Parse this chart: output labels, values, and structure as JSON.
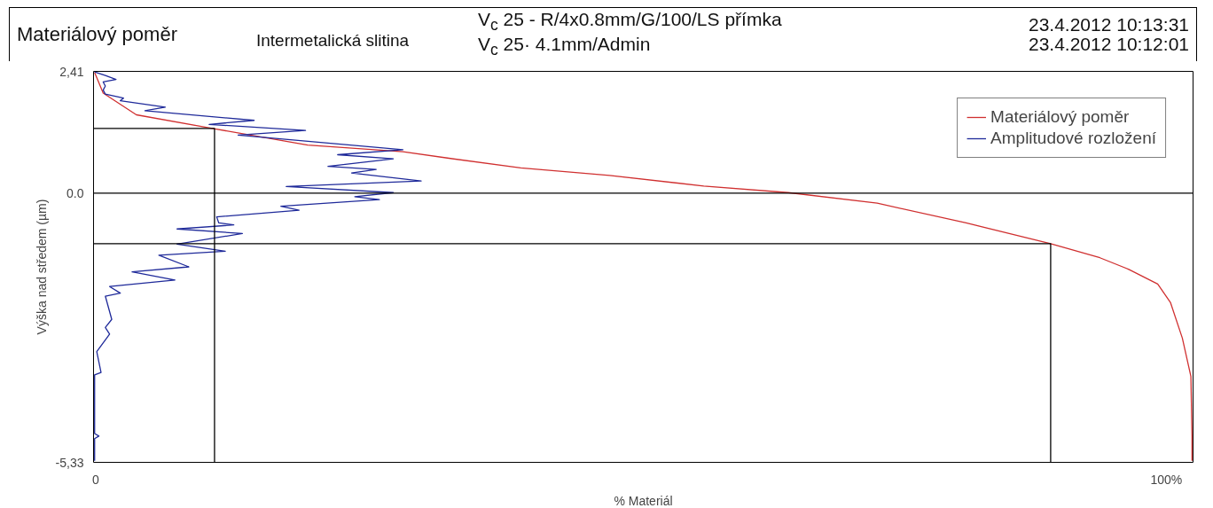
{
  "chart_data": {
    "type": "line",
    "title": "Materiálový poměr",
    "subtitle": "Intermetalická slitina",
    "annotations": [
      "V$_{c}$ 25 - R/4x0.8mm/G/100/LS přímka",
      "V$_{c}$ 25· 4.1mm/Admin",
      "23.4.2012 10:13:31",
      "23.4.2012 10:12:01"
    ],
    "xlabel": "% Materiál",
    "ylabel": "Výška nad středem (µm)",
    "xlim": [
      -0.2,
      102.5
    ],
    "xticks": [
      {
        "value": 0,
        "label": "0"
      },
      {
        "value": 100,
        "label": "100%"
      }
    ],
    "ylim": [
      -5.33,
      2.41
    ],
    "yticks": [
      {
        "value": -5.33,
        "label": "-5,33"
      },
      {
        "value": 0,
        "label": "0.0"
      },
      {
        "value": 2.41,
        "label": "2,41"
      }
    ],
    "grid": false,
    "legend": "top right",
    "ref_lines": [
      {
        "axis": "y",
        "value": 0,
        "color": "#000000"
      }
    ],
    "series": [
      {
        "name": "Materiálový poměr",
        "color": "#d03030",
        "x": [
          -0.1,
          0.7,
          3.8,
          10.9,
          19.8,
          28.7,
          33.0,
          39.7,
          48.0,
          56.8,
          64.7,
          73.0,
          81.3,
          89.2,
          93.8,
          96.5,
          99.2,
          100.4,
          101.5,
          102.3,
          102.4,
          102.4
        ],
        "values": [
          2.39,
          1.98,
          1.55,
          1.28,
          0.95,
          0.82,
          0.69,
          0.5,
          0.35,
          0.14,
          0.01,
          -0.2,
          -0.59,
          -1.0,
          -1.28,
          -1.51,
          -1.8,
          -2.17,
          -2.87,
          -3.63,
          -4.81,
          -5.3
        ]
      },
      {
        "name": "Amplitudové rozložení",
        "color": "#1f2a9a",
        "x": [
          -0.1,
          0.9,
          1.9,
          0.7,
          0.9,
          0.7,
          0.9,
          2.6,
          2.3,
          6.5,
          4.6,
          14.8,
          10.6,
          19.6,
          13.3,
          28.7,
          22.6,
          27.8,
          21.7,
          26.2,
          23.9,
          30.4,
          17.8,
          27.8,
          24.2,
          26.5,
          17.3,
          19.0,
          11.3,
          11.5,
          12.9,
          7.6,
          13.7,
          7.6,
          12.1,
          5.9,
          8.7,
          3.4,
          7.4,
          1.3,
          2.3,
          0.9,
          1.5,
          0.9,
          1.3,
          0.1,
          0.5,
          -0.1,
          -0.1,
          0.3,
          -0.1,
          -0.1
        ],
        "values": [
          2.4,
          2.33,
          2.25,
          2.2,
          2.12,
          2.04,
          1.96,
          1.88,
          1.83,
          1.7,
          1.63,
          1.44,
          1.36,
          1.24,
          1.15,
          0.86,
          0.76,
          0.68,
          0.53,
          0.47,
          0.4,
          0.24,
          0.13,
          0.01,
          -0.07,
          -0.13,
          -0.26,
          -0.34,
          -0.47,
          -0.59,
          -0.63,
          -0.71,
          -0.8,
          -1.01,
          -1.15,
          -1.23,
          -1.46,
          -1.56,
          -1.72,
          -1.85,
          -1.98,
          -2.04,
          -2.5,
          -2.66,
          -2.79,
          -3.14,
          -3.55,
          -3.6,
          -4.76,
          -4.81,
          -4.86,
          -5.3
        ]
      },
      {
        "color": "#000000",
        "x": [
          -0.2,
          11.1,
          11.1
        ],
        "values": [
          1.28,
          1.28,
          -5.33
        ]
      },
      {
        "color": "#000000",
        "x": [
          -0.2,
          89.2,
          89.2
        ],
        "values": [
          -1.0,
          -1.0,
          -5.33
        ]
      }
    ]
  }
}
